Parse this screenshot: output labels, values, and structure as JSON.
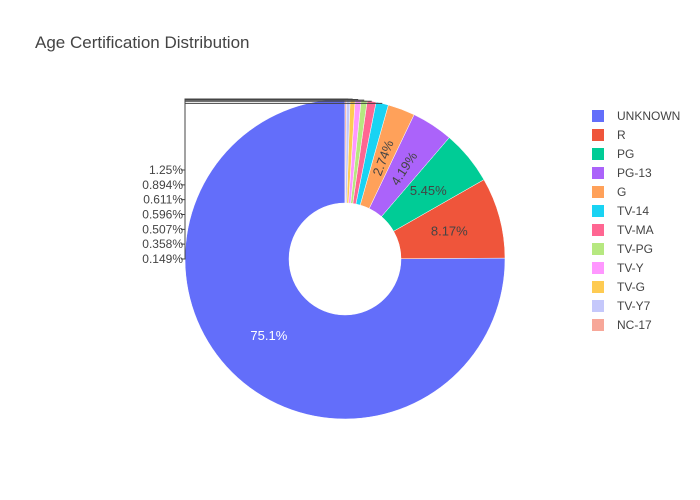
{
  "chart_data": {
    "type": "pie",
    "title": "Age Certification Distribution",
    "hole": 0.35,
    "legend_position": "right",
    "slices": [
      {
        "label": "UNKNOWN",
        "percent": 75.1,
        "percent_label": "75.1%",
        "color": "#636efa"
      },
      {
        "label": "R",
        "percent": 8.17,
        "percent_label": "8.17%",
        "color": "#ef553b"
      },
      {
        "label": "PG",
        "percent": 5.45,
        "percent_label": "5.45%",
        "color": "#00cc96"
      },
      {
        "label": "PG-13",
        "percent": 4.19,
        "percent_label": "4.19%",
        "color": "#ab63fa"
      },
      {
        "label": "G",
        "percent": 2.74,
        "percent_label": "2.74%",
        "color": "#ffa15a"
      },
      {
        "label": "TV-14",
        "percent": 1.25,
        "percent_label": "1.25%",
        "color": "#19d3f3"
      },
      {
        "label": "TV-MA",
        "percent": 0.894,
        "percent_label": "0.894%",
        "color": "#ff6692"
      },
      {
        "label": "TV-PG",
        "percent": 0.611,
        "percent_label": "0.611%",
        "color": "#b6e880"
      },
      {
        "label": "TV-Y",
        "percent": 0.596,
        "percent_label": "0.596%",
        "color": "#ff97ff"
      },
      {
        "label": "TV-G",
        "percent": 0.507,
        "percent_label": "0.507%",
        "color": "#fecb52"
      },
      {
        "label": "TV-Y7",
        "percent": 0.358,
        "percent_label": "0.358%",
        "color": "#c5c8fb"
      },
      {
        "label": "NC-17",
        "percent": 0.149,
        "percent_label": "0.149%",
        "color": "#f7a799"
      }
    ]
  }
}
